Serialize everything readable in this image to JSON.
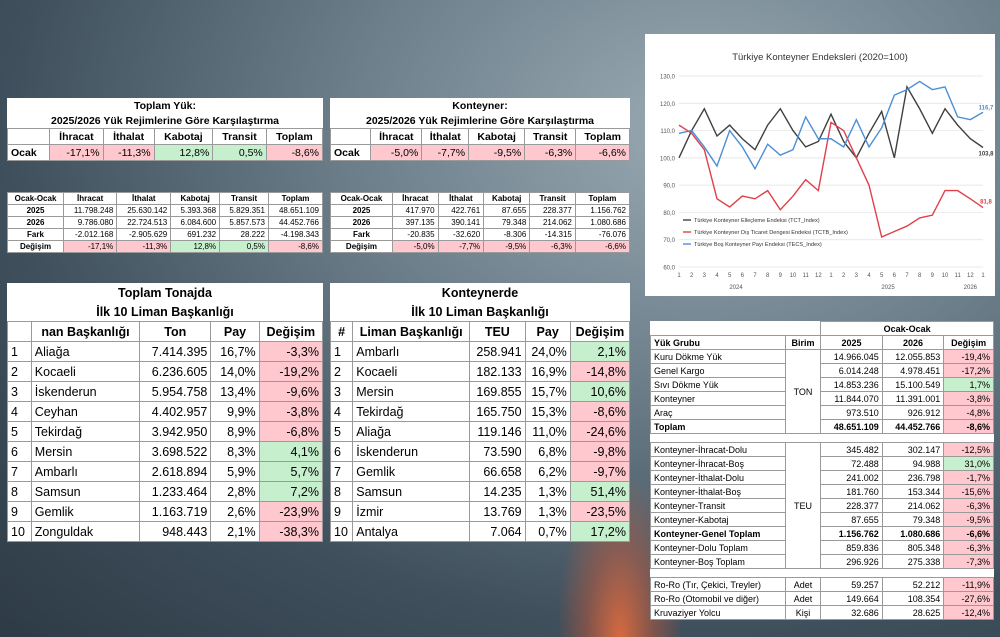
{
  "t1a": {
    "title1": "Toplam Yük:",
    "title2": "2025/2026 Yük Rejimlerine Göre Karşılaştırma",
    "headers": [
      "İhracat",
      "İthalat",
      "Kabotaj",
      "Transit",
      "Toplam"
    ],
    "row": {
      "label": "Ocak",
      "values": [
        "-17,1%",
        "-11,3%",
        "12,8%",
        "0,5%",
        "-8,6%"
      ]
    }
  },
  "t1b": {
    "title1": "Konteyner:",
    "title2": "2025/2026 Yük Rejimlerine Göre Karşılaştırma",
    "headers": [
      "İhracat",
      "İthalat",
      "Kabotaj",
      "Transit",
      "Toplam"
    ],
    "row": {
      "label": "Ocak",
      "values": [
        "-5,0%",
        "-7,7%",
        "-9,5%",
        "-6,3%",
        "-6,6%"
      ]
    }
  },
  "t2a": {
    "corner": "Ocak-Ocak",
    "headers": [
      "İhracat",
      "İthalat",
      "Kabotaj",
      "Transit",
      "Toplam"
    ],
    "rows": [
      {
        "label": "2025",
        "values": [
          "11.798.248",
          "25.630.142",
          "5.393.368",
          "5.829.351",
          "48.651.109"
        ]
      },
      {
        "label": "2026",
        "values": [
          "9.786.080",
          "22.724.513",
          "6.084.600",
          "5.857.573",
          "44.452.766"
        ]
      },
      {
        "label": "Fark",
        "values": [
          "-2.012.168",
          "-2.905.629",
          "691.232",
          "28.222",
          "-4.198.343"
        ]
      },
      {
        "label": "Değişim",
        "values": [
          "-17,1%",
          "-11,3%",
          "12,8%",
          "0,5%",
          "-8,6%"
        ]
      }
    ]
  },
  "t2b": {
    "corner": "Ocak-Ocak",
    "headers": [
      "İhracat",
      "İthalat",
      "Kabotaj",
      "Transit",
      "Toplam"
    ],
    "rows": [
      {
        "label": "2025",
        "values": [
          "417.970",
          "422.761",
          "87.655",
          "228.377",
          "1.156.762"
        ]
      },
      {
        "label": "2026",
        "values": [
          "397.135",
          "390.141",
          "79.348",
          "214.062",
          "1.080.686"
        ]
      },
      {
        "label": "Fark",
        "values": [
          "-20.835",
          "-32.620",
          "-8.306",
          "-14.315",
          "-76.076"
        ]
      },
      {
        "label": "Değişim",
        "values": [
          "-5,0%",
          "-7,7%",
          "-9,5%",
          "-6,3%",
          "-6,6%"
        ]
      }
    ]
  },
  "t3a": {
    "title1": "Toplam Tonajda",
    "title2": "İlk 10 Liman Başkanlığı",
    "headers": [
      "",
      "nan  Başkanlığı",
      "Ton",
      "Pay",
      "Değişim"
    ],
    "rows": [
      [
        "1",
        "Aliağa",
        "7.414.395",
        "16,7%",
        "-3,3%"
      ],
      [
        "2",
        "Kocaeli",
        "6.236.605",
        "14,0%",
        "-19,2%"
      ],
      [
        "3",
        "İskenderun",
        "5.954.758",
        "13,4%",
        "-9,6%"
      ],
      [
        "4",
        "Ceyhan",
        "4.402.957",
        "9,9%",
        "-3,8%"
      ],
      [
        "5",
        "Tekirdağ",
        "3.942.950",
        "8,9%",
        "-6,8%"
      ],
      [
        "6",
        "Mersin",
        "3.698.522",
        "8,3%",
        "4,1%"
      ],
      [
        "7",
        "Ambarlı",
        "2.618.894",
        "5,9%",
        "5,7%"
      ],
      [
        "8",
        "Samsun",
        "1.233.464",
        "2,8%",
        "7,2%"
      ],
      [
        "9",
        "Gemlik",
        "1.163.719",
        "2,6%",
        "-23,9%"
      ],
      [
        "10",
        "Zonguldak",
        "948.443",
        "2,1%",
        "-38,3%"
      ]
    ]
  },
  "t3b": {
    "title1": "Konteynerde",
    "title2": "İlk 10 Liman Başkanlığı",
    "headers": [
      "#",
      "Liman  Başkanlığı",
      "TEU",
      "Pay",
      "Değişim"
    ],
    "rows": [
      [
        "1",
        "Ambarlı",
        "258.941",
        "24,0%",
        "2,1%"
      ],
      [
        "2",
        "Kocaeli",
        "182.133",
        "16,9%",
        "-14,8%"
      ],
      [
        "3",
        "Mersin",
        "169.855",
        "15,7%",
        "10,6%"
      ],
      [
        "4",
        "Tekirdağ",
        "165.750",
        "15,3%",
        "-8,6%"
      ],
      [
        "5",
        "Aliağa",
        "119.146",
        "11,0%",
        "-24,6%"
      ],
      [
        "6",
        "İskenderun",
        "73.590",
        "6,8%",
        "-9,8%"
      ],
      [
        "7",
        "Gemlik",
        "66.658",
        "6,2%",
        "-9,7%"
      ],
      [
        "8",
        "Samsun",
        "14.235",
        "1,3%",
        "51,4%"
      ],
      [
        "9",
        "İzmir",
        "13.769",
        "1,3%",
        "-23,5%"
      ],
      [
        "10",
        "Antalya",
        "7.064",
        "0,7%",
        "17,2%"
      ]
    ]
  },
  "t4": {
    "group_header": "Ocak-Ocak",
    "headers": [
      "Yük Grubu",
      "Birim",
      "2025",
      "2026",
      "Değişim"
    ],
    "ton_unit": "TON",
    "teu_unit": "TEU",
    "ton_rows": [
      [
        "Kuru Dökme Yük",
        "14.966.045",
        "12.055.853",
        "-19,4%"
      ],
      [
        "Genel Kargo",
        "6.014.248",
        "4.978.451",
        "-17,2%"
      ],
      [
        "Sıvı Dökme Yük",
        "14.853.236",
        "15.100.549",
        "1,7%"
      ],
      [
        "Konteyner",
        "11.844.070",
        "11.391.001",
        "-3,8%"
      ],
      [
        "Araç",
        "973.510",
        "926.912",
        "-4,8%"
      ]
    ],
    "ton_total": [
      "Toplam",
      "48.651.109",
      "44.452.766",
      "-8,6%"
    ],
    "teu_rows": [
      [
        "Konteyner-İhracat-Dolu",
        "345.482",
        "302.147",
        "-12,5%"
      ],
      [
        "Konteyner-İhracat-Boş",
        "72.488",
        "94.988",
        "31,0%"
      ],
      [
        "Konteyner-İthalat-Dolu",
        "241.002",
        "236.798",
        "-1,7%"
      ],
      [
        "Konteyner-İthalat-Boş",
        "181.760",
        "153.344",
        "-15,6%"
      ],
      [
        "Konteyner-Transit",
        "228.377",
        "214.062",
        "-6,3%"
      ],
      [
        "Konteyner-Kabotaj",
        "87.655",
        "79.348",
        "-9,5%"
      ]
    ],
    "teu_total": [
      "Konteyner-Genel Toplam",
      "1.156.762",
      "1.080.686",
      "-6,6%"
    ],
    "teu_extra": [
      [
        "Konteyner-Dolu Toplam",
        "859.836",
        "805.348",
        "-6,3%"
      ],
      [
        "Konteyner-Boş Toplam",
        "296.926",
        "275.338",
        "-7,3%"
      ]
    ],
    "other_rows": [
      [
        "Ro-Ro (Tır, Çekici, Treyler)",
        "Adet",
        "59.257",
        "52.212",
        "-11,9%"
      ],
      [
        "Ro-Ro (Otomobil ve diğer)",
        "Adet",
        "149.664",
        "108.354",
        "-27,6%"
      ],
      [
        "Kruvaziyer Yolcu",
        "Kişi",
        "32.686",
        "28.625",
        "-12,4%"
      ]
    ]
  },
  "chart_data": {
    "type": "line",
    "title": "Türkiye Konteyner Endeksleri (2020=100)",
    "x": [
      "1",
      "2",
      "3",
      "4",
      "5",
      "6",
      "7",
      "8",
      "9",
      "10",
      "11",
      "12",
      "1",
      "2",
      "3",
      "4",
      "5",
      "6",
      "7",
      "8",
      "9",
      "10",
      "11",
      "12",
      "1"
    ],
    "year_labels": [
      {
        "label": "2024",
        "at": 5.5
      },
      {
        "label": "2025",
        "at": 17.5
      },
      {
        "label": "2026",
        "at": 24
      }
    ],
    "ylim": [
      60,
      130
    ],
    "yticks": [
      "60,0",
      "70,0",
      "80,0",
      "90,0",
      "100,0",
      "110,0",
      "120,0",
      "130,0"
    ],
    "series": [
      {
        "name": "Türkiye Konteyner Elleçleme Endeksi (TCT_Index)",
        "color": "#404040",
        "values": [
          100,
          110,
          118,
          108,
          112,
          107,
          103,
          112,
          118,
          110,
          104,
          106,
          116,
          106,
          100,
          109,
          117,
          100,
          126,
          118,
          109,
          118,
          112,
          107,
          103.8
        ]
      },
      {
        "name": "Türkiye Konteyner Dış Ticaret Dengesi Endeksi (TCTB_Index)",
        "color": "#e0404a",
        "values": [
          112,
          109,
          103,
          85,
          82,
          86,
          85,
          88,
          81,
          86,
          92,
          88,
          113,
          110,
          100,
          90,
          71,
          73,
          75,
          78,
          79,
          88,
          88,
          85,
          81.8
        ]
      },
      {
        "name": "Türkiye Boş Konteyner Payı Endeksi (TECS_Index)",
        "color": "#4a8fd8",
        "values": [
          109,
          110,
          104,
          97,
          110,
          104,
          96,
          105,
          101,
          103,
          115,
          107,
          107,
          104,
          114,
          104,
          111,
          123,
          125,
          128,
          125,
          126,
          115,
          114,
          116.7
        ]
      }
    ],
    "end_labels": [
      "116,7",
      "103,8",
      "81,8"
    ]
  }
}
